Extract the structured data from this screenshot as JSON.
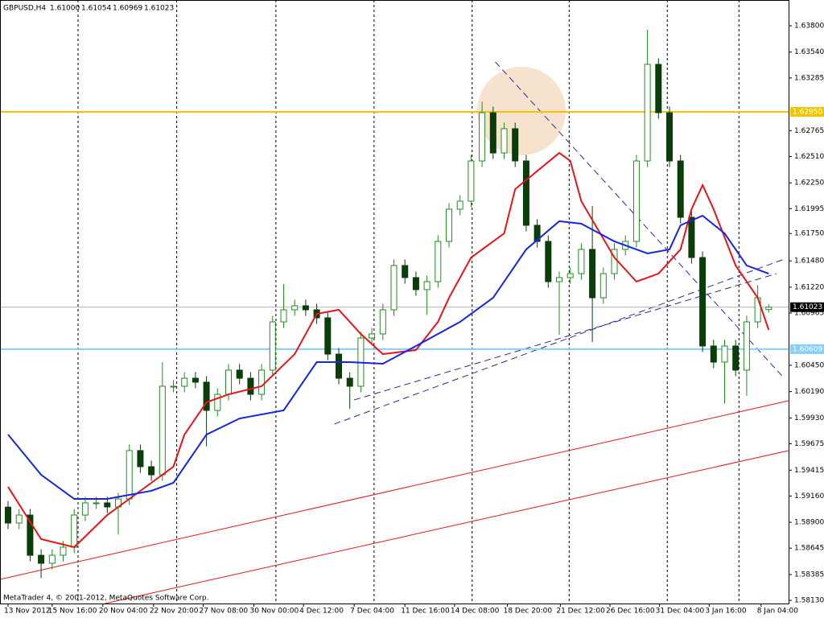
{
  "chart_data": {
    "type": "candlestick",
    "symbol": "GBPUSD,H4",
    "ohlc_labels": [
      "1.61000",
      "1.61054",
      "1.60969",
      "1.61023"
    ],
    "footer": "MetaTrader 4, © 2001-2012, MetaQuotes Software Corp.",
    "up_color": "#1f8f1f",
    "down_color": "#0b3d0b",
    "open": [
      1.5905,
      1.58893,
      1.58972,
      1.58575,
      1.58496,
      1.58575,
      1.58655,
      1.58972,
      1.59092,
      1.59092,
      1.59052,
      1.59131,
      1.59608,
      1.59449,
      1.59369,
      1.60243,
      1.60243,
      1.60322,
      1.60283,
      1.60005,
      1.60163,
      1.60402,
      1.60322,
      1.60163,
      1.60402,
      1.60878,
      1.60997,
      1.61037,
      1.60997,
      1.60918,
      1.6056,
      1.60322,
      1.60243,
      1.60719,
      1.60759,
      1.60997,
      1.61434,
      1.61315,
      1.61196,
      1.61275,
      1.61672,
      1.6199,
      1.62069,
      1.62466,
      1.62942,
      1.62545,
      1.62784,
      1.62466,
      1.61831,
      1.61672,
      1.61275,
      1.61315,
      1.61354,
      1.61593,
      1.61116,
      1.61354,
      1.61593,
      1.61672,
      1.62466,
      1.63419,
      1.62942,
      1.62466,
      1.6191,
      1.61513,
      1.6064,
      1.60481,
      1.6064,
      1.60402,
      1.60878,
      1.61
    ],
    "high": [
      1.5911,
      1.59032,
      1.59032,
      1.58635,
      1.58635,
      1.58715,
      1.59032,
      1.59152,
      1.59152,
      1.59152,
      1.59191,
      1.59668,
      1.59668,
      1.59509,
      1.6048,
      1.60303,
      1.60382,
      1.60382,
      1.60343,
      1.60223,
      1.60462,
      1.60462,
      1.60382,
      1.60462,
      1.60938,
      1.6125,
      1.61097,
      1.61097,
      1.61057,
      1.60978,
      1.6062,
      1.60382,
      1.60779,
      1.60819,
      1.61057,
      1.61494,
      1.61494,
      1.61375,
      1.61335,
      1.61732,
      1.6205,
      1.62129,
      1.62526,
      1.6305,
      1.63002,
      1.62844,
      1.62844,
      1.62526,
      1.61891,
      1.61732,
      1.61375,
      1.61414,
      1.61653,
      1.6202,
      1.61414,
      1.61653,
      1.61732,
      1.62526,
      1.6376,
      1.63479,
      1.63002,
      1.62526,
      1.6197,
      1.61573,
      1.607,
      1.607,
      1.607,
      1.60938,
      1.6124,
      1.61054
    ],
    "low": [
      1.58833,
      1.58833,
      1.58515,
      1.5835,
      1.58436,
      1.58515,
      1.58595,
      1.58912,
      1.59032,
      1.58992,
      1.5878,
      1.59071,
      1.59389,
      1.59309,
      1.59309,
      1.60183,
      1.60183,
      1.60223,
      1.5965,
      1.59945,
      1.60103,
      1.60262,
      1.60103,
      1.60103,
      1.60342,
      1.60818,
      1.60937,
      1.60937,
      1.60858,
      1.605,
      1.60262,
      1.6002,
      1.60183,
      1.60659,
      1.60699,
      1.60937,
      1.61255,
      1.61136,
      1.6095,
      1.61215,
      1.61612,
      1.6193,
      1.62009,
      1.62406,
      1.62485,
      1.62485,
      1.62406,
      1.61771,
      1.61612,
      1.61215,
      1.6075,
      1.61255,
      1.61294,
      1.6068,
      1.61056,
      1.61294,
      1.61533,
      1.61612,
      1.62406,
      1.62882,
      1.62406,
      1.6185,
      1.61453,
      1.6058,
      1.60421,
      1.6007,
      1.60342,
      1.6015,
      1.60818,
      1.60969
    ],
    "close": [
      1.58893,
      1.58972,
      1.58575,
      1.58496,
      1.58575,
      1.58655,
      1.58972,
      1.59092,
      1.59092,
      1.59052,
      1.59131,
      1.59608,
      1.59449,
      1.59369,
      1.60243,
      1.60243,
      1.60322,
      1.60283,
      1.60005,
      1.60163,
      1.60402,
      1.60322,
      1.60163,
      1.60402,
      1.60878,
      1.60997,
      1.61037,
      1.60997,
      1.60918,
      1.6056,
      1.60322,
      1.60243,
      1.60719,
      1.60759,
      1.60997,
      1.61434,
      1.61315,
      1.61196,
      1.61275,
      1.61672,
      1.6199,
      1.62069,
      1.62466,
      1.62942,
      1.62545,
      1.62784,
      1.62466,
      1.61831,
      1.61672,
      1.61275,
      1.61315,
      1.61354,
      1.61593,
      1.61116,
      1.61354,
      1.61593,
      1.61672,
      1.62466,
      1.63419,
      1.62942,
      1.62466,
      1.6191,
      1.61513,
      1.6064,
      1.60481,
      1.6064,
      1.60402,
      1.60878,
      1.61116,
      1.61023
    ],
    "indicators": [
      {
        "color": "#e8141a",
        "x": [
          0,
          3,
          6,
          9,
          13,
          15,
          16,
          18,
          20,
          23,
          26,
          28,
          30,
          32,
          34,
          37,
          39,
          40,
          42,
          45,
          46,
          50,
          51,
          52,
          55,
          57,
          59,
          61,
          62,
          63,
          64,
          66,
          68,
          69
        ],
        "values": [
          1.5925,
          1.58734,
          1.58655,
          1.58972,
          1.5929,
          1.59449,
          1.59766,
          1.60084,
          1.60163,
          1.60243,
          1.6056,
          1.60957,
          1.60997,
          1.60759,
          1.6056,
          1.606,
          1.60878,
          1.61116,
          1.61513,
          1.61751,
          1.62188,
          1.62545,
          1.62466,
          1.62069,
          1.61513,
          1.61275,
          1.61354,
          1.61593,
          1.6199,
          1.62228,
          1.6199,
          1.61434,
          1.61116,
          1.60799
        ]
      },
      {
        "color": "#1426e0",
        "x": [
          0,
          3,
          6,
          9,
          13,
          15,
          18,
          21,
          25,
          28,
          31,
          34,
          37,
          41,
          44,
          47,
          50,
          52,
          55,
          58,
          60,
          61,
          63,
          65,
          67,
          69
        ],
        "values": [
          1.59766,
          1.59369,
          1.59131,
          1.59131,
          1.59211,
          1.5929,
          1.59766,
          1.59925,
          1.60005,
          1.60481,
          1.60481,
          1.60465,
          1.6064,
          1.60878,
          1.61116,
          1.61593,
          1.61871,
          1.61847,
          1.61672,
          1.61553,
          1.61593,
          1.61831,
          1.61926,
          1.61751,
          1.61434,
          1.61354
        ]
      }
    ],
    "trendlines": [
      {
        "color": "#2a2a9a",
        "dash": true,
        "x": [
          29.6,
          70.4
        ],
        "values": [
          1.5987,
          1.61497
        ]
      },
      {
        "color": "#2a2a9a",
        "dash": true,
        "x": [
          31.4,
          69.7
        ],
        "values": [
          1.60108,
          1.61354
        ]
      },
      {
        "color": "#2a2a9a",
        "dash": true,
        "x": [
          44.2,
          70.4
        ],
        "values": [
          1.63443,
          1.60322
        ]
      },
      {
        "color": "#e8141a",
        "dash": false,
        "x": [
          -0.73,
          70.8
        ],
        "values": [
          1.58337,
          1.601
        ]
      },
      {
        "color": "#e8141a",
        "dash": false,
        "x": [
          8.8,
          70.8
        ],
        "values": [
          1.58099,
          1.59608
        ]
      }
    ],
    "hlines": [
      {
        "value": 1.6295,
        "label": "1.62950",
        "color": "#f2c500",
        "text_color": "#ffffff"
      },
      {
        "value": 1.60609,
        "label": "1.60609",
        "color": "#87cefa",
        "text_color": "#ffffff"
      },
      {
        "value": 1.61023,
        "label": "1.61023",
        "color": "#b0b0b0",
        "text_color": "#ffffff",
        "box_color": "#000000"
      }
    ],
    "ylim": [
      1.58099,
      1.64054
    ],
    "yticks": [
      {
        "value": 1.638,
        "label": "1.63800"
      },
      {
        "value": 1.6354,
        "label": "1.63540"
      },
      {
        "value": 1.63285,
        "label": "1.63285"
      },
      {
        "value": 1.62765,
        "label": "1.62765"
      },
      {
        "value": 1.6251,
        "label": "1.62510"
      },
      {
        "value": 1.6225,
        "label": "1.62250"
      },
      {
        "value": 1.61995,
        "label": "1.61995"
      },
      {
        "value": 1.6175,
        "label": "1.61750"
      },
      {
        "value": 1.6148,
        "label": "1.61480"
      },
      {
        "value": 1.6122,
        "label": "1.61220"
      },
      {
        "value": 1.60965,
        "label": "1.60965"
      },
      {
        "value": 1.6045,
        "label": "1.60450"
      },
      {
        "value": 1.6019,
        "label": "1.60190"
      },
      {
        "value": 1.5993,
        "label": "1.59930"
      },
      {
        "value": 1.59675,
        "label": "1.59675"
      },
      {
        "value": 1.59415,
        "label": "1.59415"
      },
      {
        "value": 1.5916,
        "label": "1.59160"
      },
      {
        "value": 1.589,
        "label": "1.58900"
      },
      {
        "value": 1.58645,
        "label": "1.58645"
      },
      {
        "value": 1.58385,
        "label": "1.58385"
      },
      {
        "value": 1.5813,
        "label": "1.58130"
      }
    ],
    "xticks": [
      {
        "value": 0,
        "label": "13 Nov 2012"
      },
      {
        "value": 4,
        "label": "15 Nov 16:00"
      },
      {
        "value": 8.6,
        "label": "20 Nov 04:00"
      },
      {
        "value": 13.2,
        "label": "22 Nov 20:00"
      },
      {
        "value": 17.7,
        "label": "27 Nov 08:00"
      },
      {
        "value": 22.3,
        "label": "30 Nov 00:00"
      },
      {
        "value": 26.8,
        "label": "4 Dec 12:00"
      },
      {
        "value": 31.4,
        "label": "7 Dec 04:00"
      },
      {
        "value": 36,
        "label": "11 Dec 16:00"
      },
      {
        "value": 40.5,
        "label": "14 Dec 08:00"
      },
      {
        "value": 45.3,
        "label": "18 Dec 20:00"
      },
      {
        "value": 50.1,
        "label": "21 Dec 12:00"
      },
      {
        "value": 54.6,
        "label": "26 Dec 16:00"
      },
      {
        "value": 59.1,
        "label": "31 Dec 04:00"
      },
      {
        "value": 63.6,
        "label": "3 Jan 16:00"
      },
      {
        "value": 68.3,
        "label": "8 Jan 04:00"
      }
    ],
    "xgrid": [
      6.35,
      15.3,
      24.3,
      33.2,
      42.1,
      50.9,
      59.8,
      66.3
    ]
  }
}
